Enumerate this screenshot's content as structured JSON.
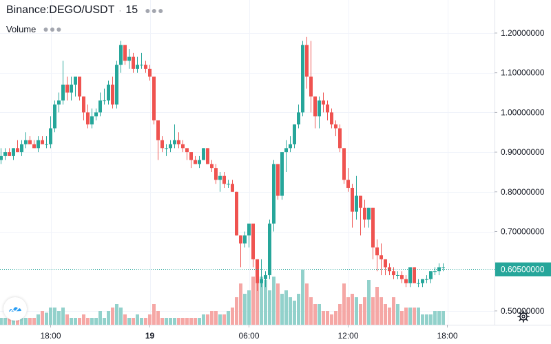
{
  "header": {
    "symbol": "Binance:DEGO/USDT",
    "interval": "15",
    "volume_label": "Volume",
    "more_icon": "ellipsis-icon"
  },
  "colors": {
    "up": "#26a69a",
    "down": "#ef5350",
    "up_volume": "#92d1cb",
    "down_volume": "#f5a7a5",
    "grid": "#f0f3fa",
    "axis_text": "#131722",
    "current_price_bg": "#26a69a"
  },
  "current_price": {
    "value": 0.605,
    "label": "0.60500000"
  },
  "icons": {
    "settings": "gear-icon",
    "logo": "tradingview-logo-icon"
  },
  "chart_data": {
    "type": "candlestick",
    "title": "Binance:DEGO/USDT 15",
    "ylim": [
      0.46,
      1.26
    ],
    "y_ticks": [
      {
        "value": 1.2,
        "label": "1.20000000"
      },
      {
        "value": 1.1,
        "label": "1.10000000"
      },
      {
        "value": 1.0,
        "label": "1.00000000"
      },
      {
        "value": 0.9,
        "label": "0.90000000"
      },
      {
        "value": 0.8,
        "label": "0.80000000"
      },
      {
        "value": 0.7,
        "label": "0.70000000"
      },
      {
        "value": 0.5,
        "label": "0.50000000"
      }
    ],
    "x_ticks": [
      {
        "index": 12,
        "label": "18:00",
        "bold": false
      },
      {
        "index": 36,
        "label": "19",
        "bold": true
      },
      {
        "index": 60,
        "label": "06:00",
        "bold": false
      },
      {
        "index": 84,
        "label": "12:00",
        "bold": false
      },
      {
        "index": 108,
        "label": "18:00",
        "bold": false
      }
    ],
    "ohlc": [
      [
        0.88,
        0.91,
        0.87,
        0.89
      ],
      [
        0.89,
        0.91,
        0.88,
        0.9
      ],
      [
        0.9,
        0.91,
        0.89,
        0.89
      ],
      [
        0.89,
        0.91,
        0.88,
        0.91
      ],
      [
        0.91,
        0.93,
        0.9,
        0.9
      ],
      [
        0.9,
        0.93,
        0.89,
        0.92
      ],
      [
        0.92,
        0.95,
        0.91,
        0.93
      ],
      [
        0.93,
        0.94,
        0.92,
        0.92
      ],
      [
        0.92,
        0.93,
        0.91,
        0.91
      ],
      [
        0.91,
        0.94,
        0.9,
        0.93
      ],
      [
        0.93,
        0.94,
        0.92,
        0.92
      ],
      [
        0.92,
        0.94,
        0.91,
        0.92
      ],
      [
        0.92,
        0.99,
        0.91,
        0.96
      ],
      [
        0.96,
        1.03,
        0.95,
        1.02
      ],
      [
        1.02,
        1.05,
        1.0,
        1.03
      ],
      [
        1.03,
        1.13,
        1.02,
        1.07
      ],
      [
        1.07,
        1.09,
        1.03,
        1.05
      ],
      [
        1.05,
        1.09,
        1.03,
        1.07
      ],
      [
        1.07,
        1.09,
        1.04,
        1.09
      ],
      [
        1.09,
        1.09,
        1.03,
        1.04
      ],
      [
        1.04,
        1.04,
        0.98,
        1.0
      ],
      [
        1.0,
        1.02,
        0.96,
        0.97
      ],
      [
        0.97,
        1.01,
        0.96,
        0.99
      ],
      [
        0.99,
        1.01,
        0.98,
        1.0
      ],
      [
        1.0,
        1.05,
        0.99,
        1.03
      ],
      [
        1.03,
        1.06,
        1.02,
        1.03
      ],
      [
        1.03,
        1.08,
        1.02,
        1.07
      ],
      [
        1.07,
        1.09,
        1.01,
        1.02
      ],
      [
        1.02,
        1.13,
        1.01,
        1.12
      ],
      [
        1.12,
        1.18,
        1.1,
        1.17
      ],
      [
        1.17,
        1.17,
        1.12,
        1.13
      ],
      [
        1.13,
        1.16,
        1.11,
        1.14
      ],
      [
        1.14,
        1.15,
        1.1,
        1.11
      ],
      [
        1.11,
        1.14,
        1.1,
        1.12
      ],
      [
        1.12,
        1.15,
        1.11,
        1.12
      ],
      [
        1.12,
        1.13,
        1.1,
        1.11
      ],
      [
        1.11,
        1.12,
        1.08,
        1.09
      ],
      [
        1.09,
        1.09,
        0.97,
        0.98
      ],
      [
        0.98,
        0.98,
        0.88,
        0.93
      ],
      [
        0.93,
        0.94,
        0.9,
        0.91
      ],
      [
        0.91,
        0.92,
        0.89,
        0.91
      ],
      [
        0.91,
        0.93,
        0.9,
        0.92
      ],
      [
        0.92,
        0.97,
        0.91,
        0.93
      ],
      [
        0.93,
        0.95,
        0.91,
        0.92
      ],
      [
        0.92,
        0.93,
        0.9,
        0.91
      ],
      [
        0.91,
        0.91,
        0.88,
        0.9
      ],
      [
        0.9,
        0.9,
        0.86,
        0.88
      ],
      [
        0.88,
        0.89,
        0.87,
        0.87
      ],
      [
        0.87,
        0.89,
        0.86,
        0.88
      ],
      [
        0.88,
        0.91,
        0.88,
        0.91
      ],
      [
        0.91,
        0.91,
        0.87,
        0.87
      ],
      [
        0.87,
        0.88,
        0.85,
        0.86
      ],
      [
        0.86,
        0.87,
        0.82,
        0.83
      ],
      [
        0.83,
        0.85,
        0.8,
        0.84
      ],
      [
        0.84,
        0.85,
        0.81,
        0.82
      ],
      [
        0.82,
        0.83,
        0.81,
        0.82
      ],
      [
        0.82,
        0.83,
        0.8,
        0.8
      ],
      [
        0.8,
        0.8,
        0.69,
        0.69
      ],
      [
        0.69,
        0.69,
        0.61,
        0.67
      ],
      [
        0.67,
        0.7,
        0.66,
        0.69
      ],
      [
        0.69,
        0.72,
        0.66,
        0.72
      ],
      [
        0.72,
        0.72,
        0.61,
        0.63
      ],
      [
        0.63,
        0.63,
        0.55,
        0.57
      ],
      [
        0.57,
        0.63,
        0.56,
        0.58
      ],
      [
        0.58,
        0.6,
        0.56,
        0.59
      ],
      [
        0.59,
        0.73,
        0.58,
        0.72
      ],
      [
        0.72,
        0.88,
        0.7,
        0.87
      ],
      [
        0.87,
        0.87,
        0.78,
        0.79
      ],
      [
        0.79,
        0.9,
        0.78,
        0.9
      ],
      [
        0.9,
        0.93,
        0.85,
        0.91
      ],
      [
        0.91,
        0.94,
        0.9,
        0.92
      ],
      [
        0.92,
        0.97,
        0.91,
        0.97
      ],
      [
        0.97,
        1.02,
        0.96,
        1.0
      ],
      [
        1.0,
        1.18,
        0.99,
        1.17
      ],
      [
        1.17,
        1.19,
        1.06,
        1.09
      ],
      [
        1.09,
        1.18,
        1.0,
        1.04
      ],
      [
        1.04,
        1.04,
        0.96,
        0.99
      ],
      [
        0.99,
        1.04,
        0.96,
        1.03
      ],
      [
        1.03,
        1.05,
        1.0,
        1.02
      ],
      [
        1.02,
        1.03,
        0.98,
        1.0
      ],
      [
        1.0,
        1.01,
        0.96,
        0.97
      ],
      [
        0.97,
        0.98,
        0.94,
        0.96
      ],
      [
        0.96,
        0.97,
        0.9,
        0.91
      ],
      [
        0.91,
        0.91,
        0.82,
        0.83
      ],
      [
        0.83,
        0.86,
        0.8,
        0.81
      ],
      [
        0.81,
        0.82,
        0.71,
        0.75
      ],
      [
        0.75,
        0.84,
        0.73,
        0.79
      ],
      [
        0.79,
        0.79,
        0.69,
        0.76
      ],
      [
        0.76,
        0.78,
        0.71,
        0.73
      ],
      [
        0.73,
        0.76,
        0.71,
        0.76
      ],
      [
        0.76,
        0.76,
        0.63,
        0.66
      ],
      [
        0.66,
        0.68,
        0.6,
        0.64
      ],
      [
        0.64,
        0.67,
        0.59,
        0.63
      ],
      [
        0.63,
        0.63,
        0.59,
        0.61
      ],
      [
        0.61,
        0.62,
        0.59,
        0.6
      ],
      [
        0.6,
        0.61,
        0.58,
        0.59
      ],
      [
        0.59,
        0.6,
        0.58,
        0.59
      ],
      [
        0.59,
        0.6,
        0.57,
        0.58
      ],
      [
        0.58,
        0.59,
        0.56,
        0.57
      ],
      [
        0.57,
        0.61,
        0.56,
        0.61
      ],
      [
        0.61,
        0.61,
        0.57,
        0.57
      ],
      [
        0.57,
        0.58,
        0.56,
        0.57
      ],
      [
        0.57,
        0.58,
        0.56,
        0.58
      ],
      [
        0.58,
        0.59,
        0.57,
        0.58
      ],
      [
        0.58,
        0.6,
        0.57,
        0.6
      ],
      [
        0.6,
        0.61,
        0.59,
        0.6
      ],
      [
        0.6,
        0.62,
        0.59,
        0.61
      ],
      [
        0.61,
        0.62,
        0.6,
        0.61
      ]
    ],
    "volume": [
      0.02,
      0.02,
      0.02,
      0.025,
      0.02,
      0.02,
      0.02,
      0.02,
      0.02,
      0.03,
      0.04,
      0.035,
      0.05,
      0.05,
      0.04,
      0.05,
      0.03,
      0.02,
      0.02,
      0.02,
      0.03,
      0.02,
      0.02,
      0.02,
      0.04,
      0.02,
      0.04,
      0.05,
      0.06,
      0.05,
      0.03,
      0.02,
      0.02,
      0.03,
      0.02,
      0.02,
      0.03,
      0.06,
      0.04,
      0.02,
      0.02,
      0.02,
      0.02,
      0.02,
      0.02,
      0.02,
      0.02,
      0.02,
      0.02,
      0.03,
      0.03,
      0.04,
      0.04,
      0.03,
      0.03,
      0.04,
      0.05,
      0.08,
      0.12,
      0.09,
      0.1,
      0.14,
      0.16,
      0.14,
      0.13,
      0.1,
      0.14,
      0.12,
      0.09,
      0.1,
      0.08,
      0.07,
      0.09,
      0.16,
      0.12,
      0.08,
      0.06,
      0.06,
      0.04,
      0.04,
      0.03,
      0.04,
      0.06,
      0.12,
      0.08,
      0.09,
      0.08,
      0.06,
      0.08,
      0.13,
      0.08,
      0.11,
      0.08,
      0.06,
      0.05,
      0.08,
      0.06,
      0.04,
      0.05,
      0.05,
      0.05,
      0.05,
      0.03,
      0.03,
      0.03,
      0.04,
      0.04,
      0.04
    ]
  }
}
